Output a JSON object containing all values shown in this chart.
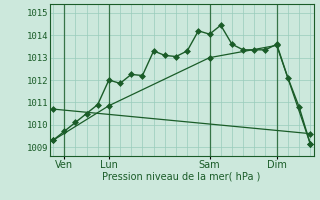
{
  "bg_color": "#cce8dc",
  "grid_color": "#99ccbb",
  "line_color": "#1a5c28",
  "title": "Pression niveau de la mer( hPa )",
  "ylabel_ticks": [
    1009,
    1010,
    1011,
    1012,
    1013,
    1014,
    1015
  ],
  "ylim": [
    1008.6,
    1015.4
  ],
  "day_labels": [
    "Ven",
    "Lun",
    "Sam",
    "Dim"
  ],
  "day_positions": [
    1,
    5,
    14,
    20
  ],
  "series1_x": [
    0,
    1,
    2,
    3,
    4,
    5,
    6,
    7,
    8,
    9,
    10,
    11,
    12,
    13,
    14,
    15,
    16,
    17,
    18,
    19,
    20,
    21,
    22,
    23
  ],
  "series1_y": [
    1009.3,
    1009.7,
    1010.1,
    1010.5,
    1010.9,
    1012.0,
    1011.85,
    1012.25,
    1012.2,
    1013.3,
    1013.1,
    1013.05,
    1013.3,
    1014.2,
    1014.05,
    1014.45,
    1013.6,
    1013.35,
    1013.35,
    1013.35,
    1013.6,
    1012.1,
    1010.8,
    1009.15
  ],
  "series2_x": [
    0,
    5,
    14,
    20,
    23
  ],
  "series2_y": [
    1009.3,
    1010.85,
    1013.0,
    1013.55,
    1009.15
  ],
  "series3_x": [
    0,
    23
  ],
  "series3_y": [
    1010.7,
    1009.6
  ],
  "xlim": [
    -0.3,
    23.3
  ],
  "figsize": [
    3.2,
    2.0
  ],
  "dpi": 100
}
